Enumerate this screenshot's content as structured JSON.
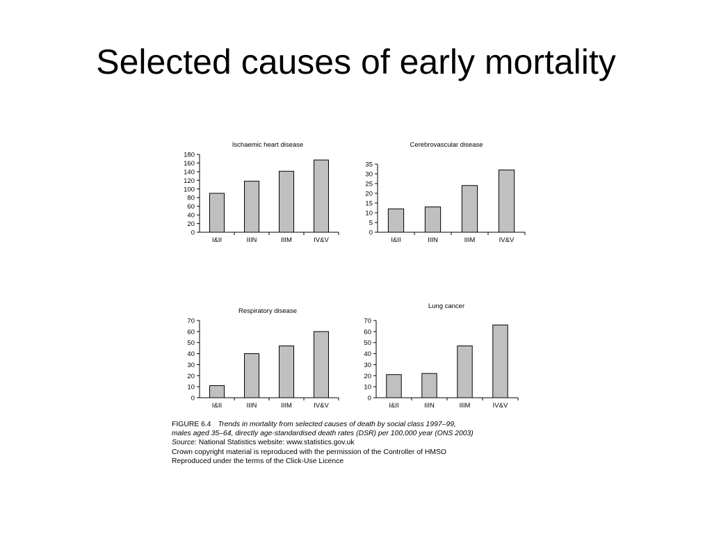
{
  "slide": {
    "title": "Selected causes of early mortality"
  },
  "chart_data": [
    {
      "type": "bar",
      "title": "Ischaemic heart disease",
      "categories": [
        "I&II",
        "IIIN",
        "IIIM",
        "IV&V"
      ],
      "values": [
        90,
        118,
        141,
        167
      ],
      "ylim": [
        0,
        180
      ],
      "yticks": [
        0,
        20,
        40,
        60,
        80,
        100,
        120,
        140,
        160,
        180
      ],
      "bar_color": "#c0c0c0",
      "xlabel": "",
      "ylabel": ""
    },
    {
      "type": "bar",
      "title": "Cerebrovascular disease",
      "categories": [
        "I&II",
        "IIIN",
        "IIIM",
        "IV&V"
      ],
      "values": [
        12,
        13,
        24,
        32
      ],
      "ylim": [
        0,
        35
      ],
      "yticks": [
        0,
        5,
        10,
        15,
        20,
        25,
        30,
        35
      ],
      "bar_color": "#c0c0c0",
      "xlabel": "",
      "ylabel": ""
    },
    {
      "type": "bar",
      "title": "Respiratory disease",
      "categories": [
        "I&II",
        "IIIN",
        "IIIM",
        "IV&V"
      ],
      "values": [
        11,
        40,
        47,
        60
      ],
      "ylim": [
        0,
        70
      ],
      "yticks": [
        0,
        10,
        20,
        30,
        40,
        50,
        60,
        70
      ],
      "bar_color": "#c0c0c0",
      "xlabel": "",
      "ylabel": ""
    },
    {
      "type": "bar",
      "title": "Lung cancer",
      "categories": [
        "I&II",
        "IIIN",
        "IIIM",
        "IV&V"
      ],
      "values": [
        21,
        22,
        47,
        66
      ],
      "ylim": [
        0,
        70
      ],
      "yticks": [
        0,
        10,
        20,
        30,
        40,
        50,
        60,
        70
      ],
      "bar_color": "#c0c0c0",
      "xlabel": "",
      "ylabel": ""
    }
  ],
  "caption": {
    "figure_label": "FIGURE 6.4",
    "description_1": "Trends in mortality from selected causes of death by social class 1997–99,",
    "description_2": "males aged 35–64, directly age-standardised death rates (DSR) per 100,000 year (ONS 2003)",
    "source_label": "Source:",
    "source_text": "National Statistics website: www.statistics.gov.uk",
    "copyright": "Crown copyright material is reproduced with the permission of the Controller of HMSO",
    "licence": "Reproduced under the terms of the Click-Use Licence"
  }
}
